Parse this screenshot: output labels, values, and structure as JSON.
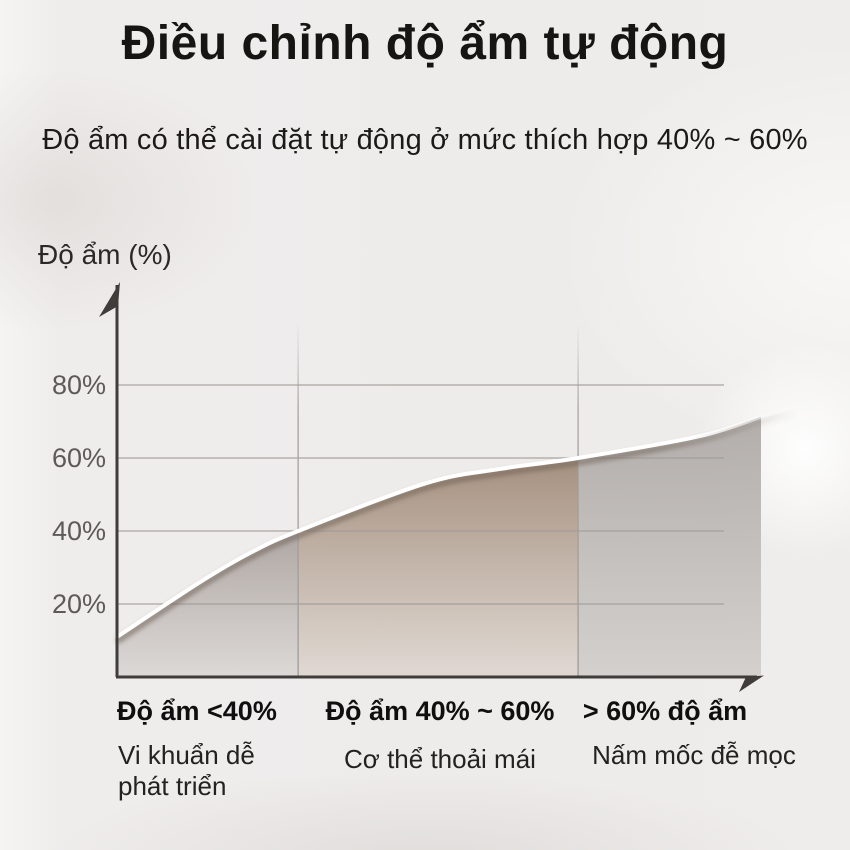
{
  "page": {
    "title": "Điều chỉnh độ ẩm tự động",
    "subtitle": "Độ ẩm có thể cài đặt tự động ở mức thích hợp 40% ~ 60%"
  },
  "chart_data": {
    "type": "area",
    "y_axis_label": "Độ ẩm (%)",
    "ylim": [
      0,
      100
    ],
    "grid": true,
    "y_ticks": [
      {
        "value": 80,
        "label": "80%"
      },
      {
        "value": 60,
        "label": "60%"
      },
      {
        "value": 40,
        "label": "40%"
      },
      {
        "value": 20,
        "label": "20%"
      }
    ],
    "curve": {
      "name": "humidity-curve",
      "points": [
        {
          "x_frac": 0.0,
          "humidity": 11
        },
        {
          "x_frac": 0.116,
          "humidity": 26
        },
        {
          "x_frac": 0.186,
          "humidity": 34
        },
        {
          "x_frac": 0.253,
          "humidity": 40
        },
        {
          "x_frac": 0.43,
          "humidity": 53
        },
        {
          "x_frac": 0.535,
          "humidity": 57
        },
        {
          "x_frac": 0.644,
          "humidity": 60
        },
        {
          "x_frac": 0.814,
          "humidity": 66
        },
        {
          "x_frac": 0.912,
          "humidity": 72
        },
        {
          "x_frac": 1.0,
          "humidity": 76
        }
      ]
    },
    "zones": [
      {
        "label": "Độ ẩm <40%",
        "description": "Vi khuẩn dễ phát triển",
        "humidity_range": [
          0,
          40
        ],
        "fill_top": "#aba29e",
        "fill_bottom": "#d9d5d3"
      },
      {
        "label": "Độ ẩm 40% ~ 60%",
        "description": "Cơ thể thoải mái",
        "humidity_range": [
          40,
          60
        ],
        "fill_top": "#a18b79",
        "fill_bottom": "#ddd5ce"
      },
      {
        "label": "> 60% độ ẩm",
        "description": "Nấm mốc đễ mọc",
        "humidity_range": [
          60,
          100
        ],
        "fill_top": "#aca7a4",
        "fill_bottom": "#cfcbc8"
      }
    ],
    "colors": {
      "background": "#efedec",
      "axis": "#3f3c39",
      "gridline": "#a19d9a",
      "curve": "#ffffff",
      "curve_shadow": "#6b5e53"
    }
  }
}
